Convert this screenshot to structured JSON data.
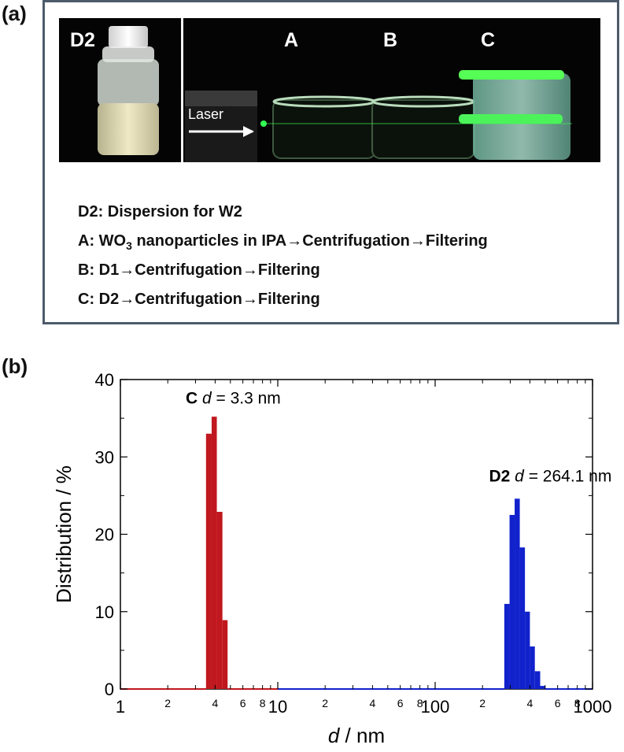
{
  "panel_a": {
    "label": "(a)",
    "photo_labels": {
      "d2": "D2",
      "a": "A",
      "b": "B",
      "c": "C",
      "laser": "Laser"
    },
    "legend": [
      {
        "text": "D2: Dispersion for W2"
      },
      {
        "text_before": "A: WO",
        "subscript": "3",
        "text_after": " nanoparticles in IPA→Centrifugation→Filtering"
      },
      {
        "text": "B: D1→Centrifugation→Filtering"
      },
      {
        "text": "C: D2→Centrifugation→Filtering"
      }
    ]
  },
  "panel_b": {
    "label": "(b)"
  },
  "chart_data": {
    "type": "bar",
    "xscale": "log",
    "xlim": [
      1,
      1000
    ],
    "ylim": [
      0,
      40
    ],
    "xlabel_italic": "d",
    "xlabel_rest": " / nm",
    "ylabel": "Distribution / %",
    "yticks": [
      "0",
      "10",
      "20",
      "30",
      "40"
    ],
    "xticks_major": [
      "1",
      "10",
      "100",
      "1000"
    ],
    "xticks_minor_labels": [
      "2",
      "4",
      "6",
      "8"
    ],
    "series": [
      {
        "name": "C",
        "color": "#c0181e",
        "annotation": {
          "bold": "C",
          "italic": "d",
          "rest": " = 3.3 nm"
        },
        "bins": [
          {
            "x0": 3.5,
            "x1": 3.8,
            "y": 33.0
          },
          {
            "x0": 3.8,
            "x1": 4.1,
            "y": 35.2
          },
          {
            "x0": 4.1,
            "x1": 4.45,
            "y": 22.9
          },
          {
            "x0": 4.45,
            "x1": 4.8,
            "y": 8.9
          }
        ]
      },
      {
        "name": "D2",
        "color": "#1122cc",
        "annotation": {
          "bold": "D2",
          "italic": "d",
          "rest": " = 264.1 nm"
        },
        "bins": [
          {
            "x0": 275,
            "x1": 297,
            "y": 11.0
          },
          {
            "x0": 297,
            "x1": 320,
            "y": 22.5
          },
          {
            "x0": 320,
            "x1": 345,
            "y": 24.6
          },
          {
            "x0": 345,
            "x1": 372,
            "y": 18.3
          },
          {
            "x0": 372,
            "x1": 400,
            "y": 10.0
          },
          {
            "x0": 400,
            "x1": 430,
            "y": 5.5
          },
          {
            "x0": 430,
            "x1": 465,
            "y": 2.3
          },
          {
            "x0": 465,
            "x1": 500,
            "y": 0.4
          }
        ]
      }
    ]
  }
}
